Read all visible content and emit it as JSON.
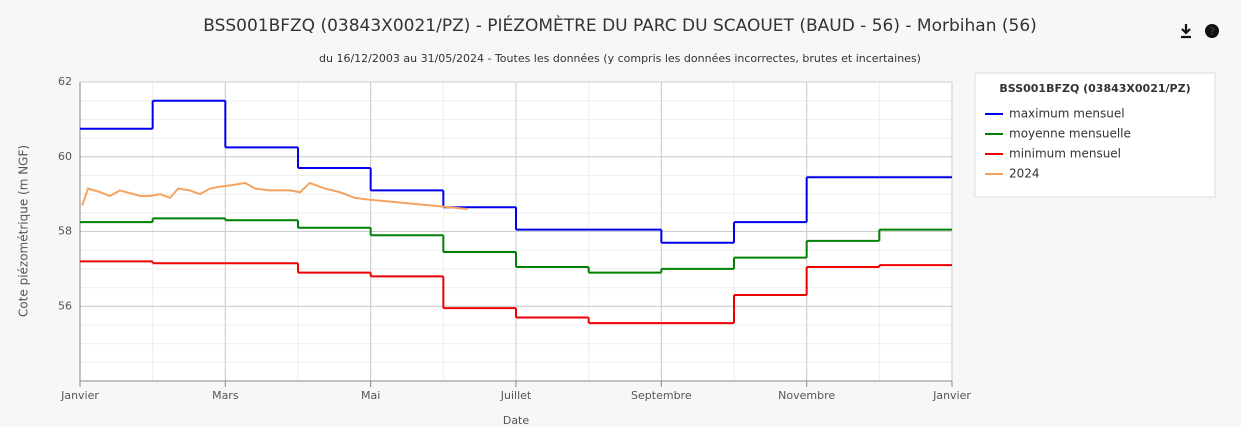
{
  "chart_data": {
    "type": "step",
    "title": "BSS001BFZQ (03843X0021/PZ) - PIÉZOMÈTRE DU PARC DU SCAOUET (BAUD - 56) - Morbihan (56)",
    "subtitle": "du 16/12/2003 au 31/05/2024 - Toutes les données (y compris les données incorrectes, brutes et incertaines)",
    "xlabel": "Date",
    "ylabel": "Cote piézométrique (m NGF)",
    "legend_title": "BSS001BFZQ (03843X0021/PZ)",
    "legend": "right",
    "grid": true,
    "xlim": [
      0,
      12
    ],
    "xticks": [
      {
        "value": 0,
        "label": "Janvier"
      },
      {
        "value": 2,
        "label": "Mars"
      },
      {
        "value": 4,
        "label": "Mai"
      },
      {
        "value": 6,
        "label": "Juillet"
      },
      {
        "value": 8,
        "label": "Septembre"
      },
      {
        "value": 10,
        "label": "Novembre"
      },
      {
        "value": 12,
        "label": "Janvier"
      }
    ],
    "ylim": [
      54,
      62
    ],
    "yticks": [
      56,
      58,
      60,
      62
    ],
    "series": [
      {
        "name": "maximum mensuel",
        "color": "#0000ee",
        "step": true,
        "x": [
          0,
          1,
          2,
          3,
          4,
          5,
          6,
          7,
          8,
          9,
          10,
          11
        ],
        "values": [
          60.75,
          61.5,
          60.25,
          59.7,
          59.1,
          58.65,
          58.05,
          58.05,
          57.7,
          58.25,
          59.45,
          59.45
        ]
      },
      {
        "name": "moyenne mensuelle",
        "color": "#008000",
        "step": true,
        "x": [
          0,
          1,
          2,
          3,
          4,
          5,
          6,
          7,
          8,
          9,
          10,
          11
        ],
        "values": [
          58.25,
          58.35,
          58.3,
          58.1,
          57.9,
          57.45,
          57.05,
          56.9,
          57.0,
          57.3,
          57.75,
          58.05
        ]
      },
      {
        "name": "minimum mensuel",
        "color": "#ee0000",
        "step": true,
        "x": [
          0,
          1,
          2,
          3,
          4,
          5,
          6,
          7,
          8,
          9,
          10,
          11
        ],
        "values": [
          57.2,
          57.15,
          57.15,
          56.9,
          56.8,
          55.95,
          55.7,
          55.55,
          55.55,
          56.3,
          57.05,
          57.1
        ]
      },
      {
        "name": "2024",
        "color": "#f4a460",
        "step": false,
        "x": [
          0.03,
          0.11,
          0.28,
          0.41,
          0.55,
          0.83,
          0.96,
          1.1,
          1.24,
          1.35,
          1.51,
          1.65,
          1.79,
          1.93,
          2.13,
          2.27,
          2.41,
          2.61,
          2.89,
          3.03,
          3.16,
          3.37,
          3.58,
          3.78,
          3.99,
          4.27,
          4.54,
          4.82,
          5.09,
          5.34
        ],
        "values": [
          58.7,
          59.15,
          59.05,
          58.95,
          59.1,
          58.95,
          58.95,
          59.0,
          58.9,
          59.15,
          59.1,
          59.0,
          59.15,
          59.2,
          59.25,
          59.3,
          59.15,
          59.1,
          59.1,
          59.05,
          59.3,
          59.15,
          59.05,
          58.9,
          58.85,
          58.8,
          58.75,
          58.7,
          58.65,
          58.6
        ]
      }
    ]
  }
}
